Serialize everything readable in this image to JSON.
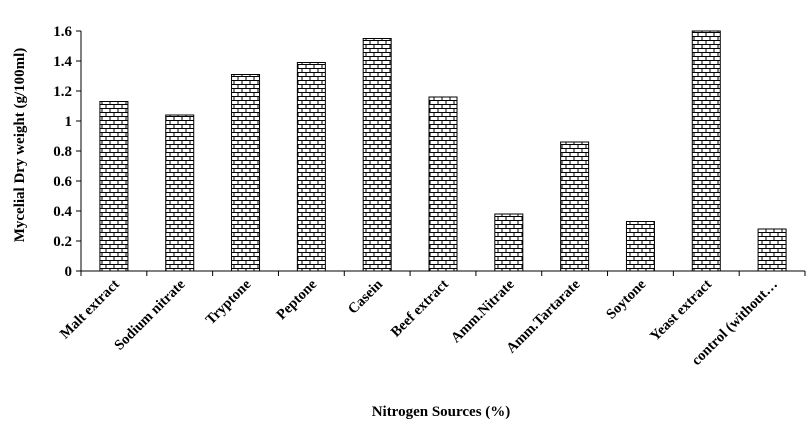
{
  "chart_data": {
    "type": "bar",
    "title": "",
    "xlabel": "Nitrogen Sources (%)",
    "ylabel": "Mycelial Dry weight  (g/100ml)",
    "ylim": [
      0,
      1.6
    ],
    "yticks": [
      "0",
      "0.2",
      "0.4",
      "0.6",
      "0.8",
      "1",
      "1.2",
      "1.4",
      "1.6"
    ],
    "categories": [
      "Malt extract",
      "Sodium nitrate",
      "Tryptone",
      "Peptone",
      "Casein",
      "Beef extract",
      "Amm.Nitrate",
      "Amm.Tartarate",
      "Soytone",
      "Yeast extract",
      "control (without…"
    ],
    "values": [
      1.13,
      1.04,
      1.31,
      1.39,
      1.55,
      1.16,
      0.38,
      0.86,
      0.33,
      1.6,
      0.28
    ],
    "bar_pattern": "brick",
    "grid": false
  }
}
